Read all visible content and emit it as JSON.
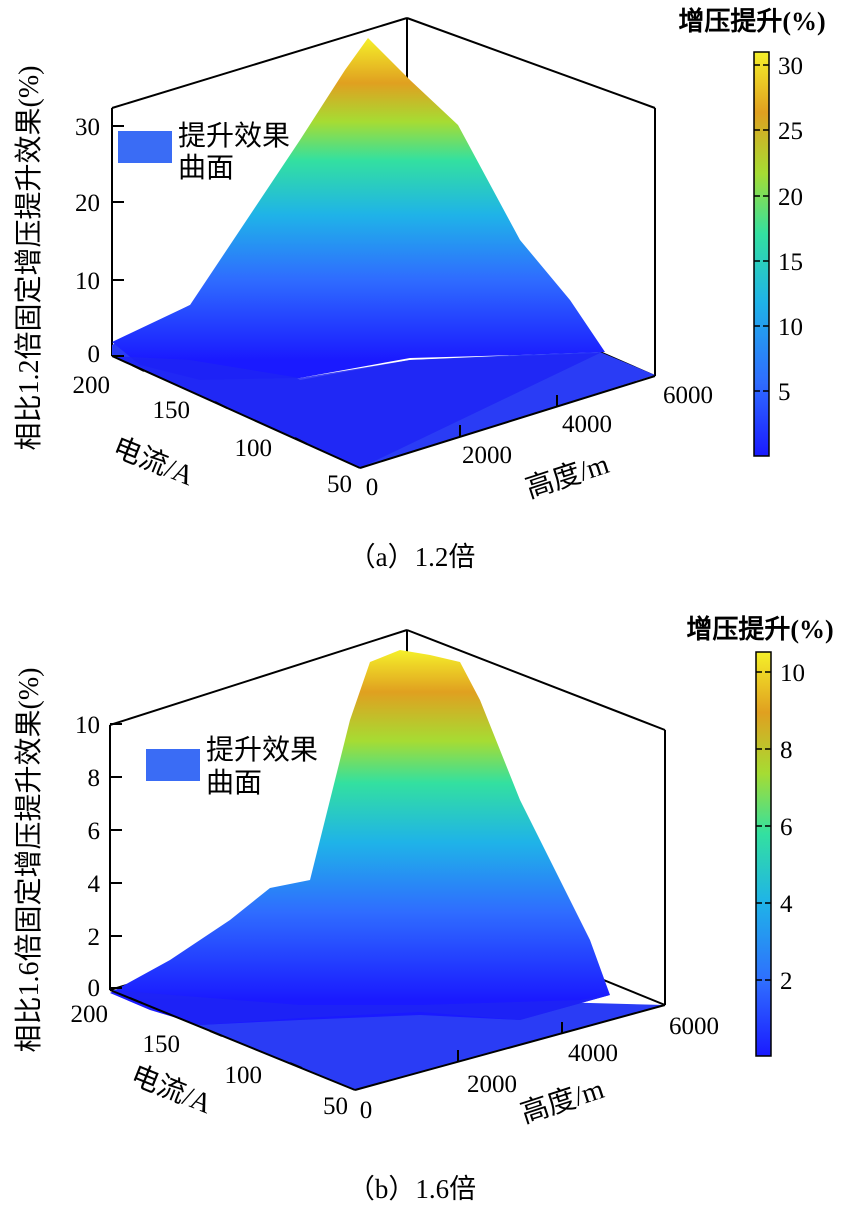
{
  "chart_data": [
    {
      "type": "surface",
      "caption": "（a）1.2倍",
      "xlabel": "高度/m",
      "ylabel": "电流/A",
      "zlabel": "相比1.2倍固定增压提升效果(%)",
      "x_ticks": [
        "0",
        "2000",
        "4000",
        "6000"
      ],
      "y_ticks": [
        "200",
        "150",
        "100",
        "50"
      ],
      "z_ticks": [
        "0",
        "10",
        "20",
        "30"
      ],
      "xlim": [
        0,
        6000
      ],
      "ylim": [
        50,
        200
      ],
      "zlim": [
        0,
        30
      ],
      "legend": "提升效果曲面",
      "legend_lines": [
        "提升效果",
        "曲面"
      ],
      "colorbar": {
        "title": "增压提升(%)",
        "ticks": [
          "30",
          "25",
          "20",
          "15",
          "10",
          "5"
        ],
        "range": [
          0,
          31
        ],
        "colormap": [
          "#1a1aff",
          "#2f6cff",
          "#1fb3e8",
          "#33e0a0",
          "#a6dc33",
          "#e0a020",
          "#f5f02a"
        ]
      },
      "surface_profile": {
        "heights_m": [
          0,
          1000,
          2000,
          3000,
          4000,
          5000,
          6000
        ],
        "peak_pct_at_200A": [
          1,
          5,
          18,
          31,
          26,
          10,
          0
        ]
      }
    },
    {
      "type": "surface",
      "caption": "（b）1.6倍",
      "xlabel": "高度/m",
      "ylabel": "电流/A",
      "zlabel": "相比1.6倍固定增压提升效果(%)",
      "x_ticks": [
        "0",
        "2000",
        "4000",
        "6000"
      ],
      "y_ticks": [
        "200",
        "150",
        "100",
        "50"
      ],
      "z_ticks": [
        "0",
        "2",
        "4",
        "6",
        "8",
        "10"
      ],
      "xlim": [
        0,
        6000
      ],
      "ylim": [
        50,
        200
      ],
      "zlim": [
        0,
        10
      ],
      "legend": "提升效果曲面",
      "legend_lines": [
        "提升效果",
        "曲面"
      ],
      "colorbar": {
        "title": "增压提升(%)",
        "ticks": [
          "10",
          "8",
          "6",
          "4",
          "2"
        ],
        "range": [
          0,
          10.4
        ],
        "colormap": [
          "#1a1aff",
          "#2f6cff",
          "#1fb3e8",
          "#33e0a0",
          "#a6dc33",
          "#e0a020",
          "#f5f02a"
        ]
      },
      "surface_profile": {
        "heights_m": [
          0,
          1000,
          2000,
          3000,
          4000,
          5000,
          6000
        ],
        "peak_pct_at_200A": [
          0.3,
          2,
          3.5,
          10.3,
          10.2,
          5,
          0
        ]
      }
    }
  ]
}
